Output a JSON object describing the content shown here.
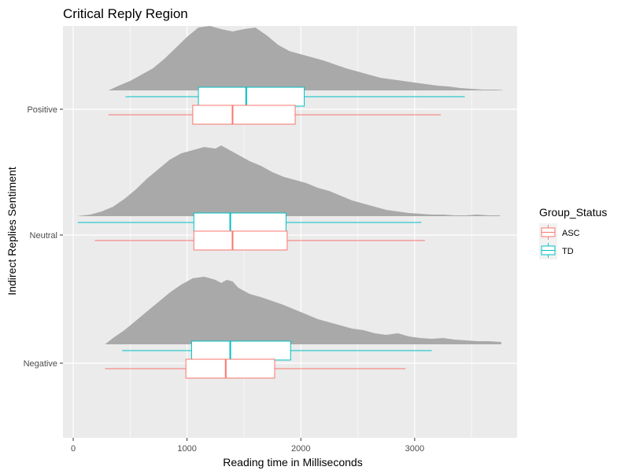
{
  "chart_data": {
    "type": "ridgeline-boxplot",
    "title": "Critical Reply Region",
    "xlabel": "Reading time in Milliseconds",
    "ylabel": "Indirect Replies Sentiment",
    "xlim": [
      -90,
      3900
    ],
    "x_ticks": [
      0,
      1000,
      2000,
      3000
    ],
    "categories": [
      "Negative",
      "Neutral",
      "Positive"
    ],
    "grid": true,
    "background": "#ebebeb",
    "density_color": "#a9a9a9",
    "legend": {
      "title": "Group_Status",
      "position": "right",
      "entries": [
        {
          "name": "ASC",
          "color": "#f8766d"
        },
        {
          "name": "TD",
          "color": "#00bfc4"
        }
      ]
    },
    "densities": [
      {
        "category": "Negative",
        "points": [
          [
            280,
            0
          ],
          [
            350,
            0.08
          ],
          [
            450,
            0.18
          ],
          [
            550,
            0.3
          ],
          [
            650,
            0.42
          ],
          [
            750,
            0.54
          ],
          [
            850,
            0.66
          ],
          [
            950,
            0.76
          ],
          [
            1050,
            0.84
          ],
          [
            1150,
            0.86
          ],
          [
            1250,
            0.82
          ],
          [
            1300,
            0.78
          ],
          [
            1350,
            0.82
          ],
          [
            1400,
            0.8
          ],
          [
            1450,
            0.72
          ],
          [
            1550,
            0.64
          ],
          [
            1650,
            0.6
          ],
          [
            1750,
            0.55
          ],
          [
            1850,
            0.5
          ],
          [
            1950,
            0.44
          ],
          [
            2050,
            0.38
          ],
          [
            2150,
            0.32
          ],
          [
            2250,
            0.28
          ],
          [
            2350,
            0.24
          ],
          [
            2450,
            0.2
          ],
          [
            2550,
            0.18
          ],
          [
            2650,
            0.14
          ],
          [
            2750,
            0.12
          ],
          [
            2850,
            0.14
          ],
          [
            2950,
            0.1
          ],
          [
            3050,
            0.08
          ],
          [
            3150,
            0.07
          ],
          [
            3250,
            0.08
          ],
          [
            3350,
            0.06
          ],
          [
            3450,
            0.05
          ],
          [
            3550,
            0.04
          ],
          [
            3650,
            0.04
          ],
          [
            3760,
            0.03
          ]
        ]
      },
      {
        "category": "Neutral",
        "points": [
          [
            30,
            0
          ],
          [
            150,
            0.02
          ],
          [
            250,
            0.06
          ],
          [
            350,
            0.12
          ],
          [
            450,
            0.22
          ],
          [
            550,
            0.34
          ],
          [
            650,
            0.48
          ],
          [
            750,
            0.6
          ],
          [
            850,
            0.72
          ],
          [
            950,
            0.8
          ],
          [
            1050,
            0.84
          ],
          [
            1150,
            0.88
          ],
          [
            1250,
            0.86
          ],
          [
            1300,
            0.9
          ],
          [
            1350,
            0.86
          ],
          [
            1450,
            0.78
          ],
          [
            1550,
            0.7
          ],
          [
            1650,
            0.64
          ],
          [
            1750,
            0.56
          ],
          [
            1850,
            0.5
          ],
          [
            1950,
            0.46
          ],
          [
            2050,
            0.42
          ],
          [
            2150,
            0.36
          ],
          [
            2250,
            0.32
          ],
          [
            2350,
            0.26
          ],
          [
            2450,
            0.2
          ],
          [
            2550,
            0.16
          ],
          [
            2650,
            0.12
          ],
          [
            2750,
            0.08
          ],
          [
            2850,
            0.06
          ],
          [
            2950,
            0.04
          ],
          [
            3050,
            0.03
          ],
          [
            3150,
            0.02
          ],
          [
            3250,
            0.02
          ],
          [
            3350,
            0.01
          ],
          [
            3450,
            0.01
          ],
          [
            3550,
            0.02
          ],
          [
            3650,
            0.01
          ],
          [
            3750,
            0.01
          ]
        ]
      },
      {
        "category": "Positive",
        "points": [
          [
            310,
            0
          ],
          [
            400,
            0.06
          ],
          [
            500,
            0.12
          ],
          [
            600,
            0.2
          ],
          [
            700,
            0.28
          ],
          [
            800,
            0.4
          ],
          [
            900,
            0.54
          ],
          [
            1000,
            0.68
          ],
          [
            1100,
            0.8
          ],
          [
            1200,
            0.82
          ],
          [
            1300,
            0.78
          ],
          [
            1400,
            0.75
          ],
          [
            1500,
            0.78
          ],
          [
            1600,
            0.8
          ],
          [
            1700,
            0.7
          ],
          [
            1800,
            0.58
          ],
          [
            1900,
            0.5
          ],
          [
            2000,
            0.46
          ],
          [
            2100,
            0.42
          ],
          [
            2200,
            0.38
          ],
          [
            2300,
            0.33
          ],
          [
            2400,
            0.28
          ],
          [
            2500,
            0.24
          ],
          [
            2600,
            0.2
          ],
          [
            2700,
            0.16
          ],
          [
            2800,
            0.14
          ],
          [
            2900,
            0.12
          ],
          [
            3000,
            0.1
          ],
          [
            3100,
            0.08
          ],
          [
            3200,
            0.06
          ],
          [
            3300,
            0.05
          ],
          [
            3400,
            0.03
          ],
          [
            3500,
            0.02
          ],
          [
            3600,
            0.01
          ],
          [
            3700,
            0.01
          ],
          [
            3770,
            0.005
          ]
        ]
      }
    ],
    "boxplots": [
      {
        "category": "Negative",
        "group": "TD",
        "whisker_low": 430,
        "q1": 1040,
        "median": 1380,
        "q3": 1910,
        "whisker_high": 3150
      },
      {
        "category": "Negative",
        "group": "ASC",
        "whisker_low": 280,
        "q1": 990,
        "median": 1340,
        "q3": 1770,
        "whisker_high": 2920
      },
      {
        "category": "Neutral",
        "group": "TD",
        "whisker_low": 40,
        "q1": 1060,
        "median": 1380,
        "q3": 1870,
        "whisker_high": 3060
      },
      {
        "category": "Neutral",
        "group": "ASC",
        "whisker_low": 190,
        "q1": 1060,
        "median": 1400,
        "q3": 1880,
        "whisker_high": 3090
      },
      {
        "category": "Positive",
        "group": "TD",
        "whisker_low": 460,
        "q1": 1100,
        "median": 1520,
        "q3": 2030,
        "whisker_high": 3440
      },
      {
        "category": "Positive",
        "group": "ASC",
        "whisker_low": 310,
        "q1": 1050,
        "median": 1400,
        "q3": 1950,
        "whisker_high": 3230
      }
    ]
  }
}
